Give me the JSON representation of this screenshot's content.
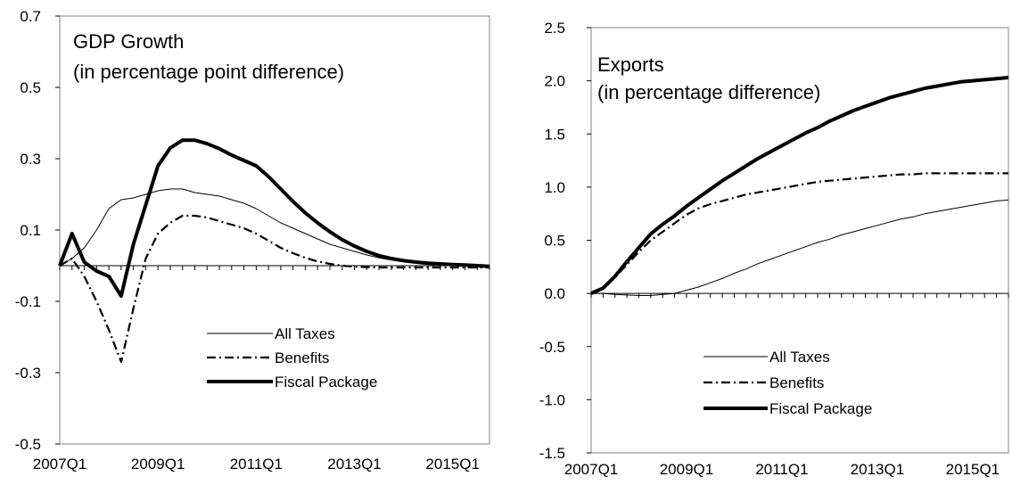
{
  "chart_data": [
    {
      "type": "line",
      "title": "GDP Growth",
      "subtitle": "(in percentage point difference)",
      "ylim": [
        -0.5,
        0.7
      ],
      "yticks": [
        "0.7",
        "0.5",
        "0.3",
        "0.1",
        "-0.1",
        "-0.3",
        "-0.5"
      ],
      "ytick_values": [
        0.7,
        0.5,
        0.3,
        0.1,
        -0.1,
        -0.3,
        -0.5
      ],
      "xtick_labels": [
        "2007Q1",
        "2009Q1",
        "2011Q1",
        "2013Q1",
        "2015Q1"
      ],
      "x": [
        "2007Q1",
        "2007Q2",
        "2007Q3",
        "2007Q4",
        "2008Q1",
        "2008Q2",
        "2008Q3",
        "2008Q4",
        "2009Q1",
        "2009Q2",
        "2009Q3",
        "2009Q4",
        "2010Q1",
        "2010Q2",
        "2010Q3",
        "2010Q4",
        "2011Q1",
        "2011Q2",
        "2011Q3",
        "2011Q4",
        "2012Q1",
        "2012Q2",
        "2012Q3",
        "2012Q4",
        "2013Q1",
        "2013Q2",
        "2013Q3",
        "2013Q4",
        "2014Q1",
        "2014Q2",
        "2014Q3",
        "2014Q4",
        "2015Q1",
        "2015Q2",
        "2015Q3",
        "2015Q4"
      ],
      "series": [
        {
          "name": "All Taxes",
          "style": "thin",
          "values": [
            0.0,
            0.02,
            0.05,
            0.1,
            0.16,
            0.185,
            0.19,
            0.2,
            0.21,
            0.215,
            0.215,
            0.205,
            0.2,
            0.195,
            0.185,
            0.175,
            0.16,
            0.14,
            0.12,
            0.105,
            0.09,
            0.075,
            0.06,
            0.05,
            0.04,
            0.03,
            0.022,
            0.016,
            0.012,
            0.008,
            0.005,
            0.003,
            0.002,
            0.0,
            -0.002,
            -0.003
          ]
        },
        {
          "name": "Benefits",
          "style": "dashdot",
          "values": [
            0.0,
            0.02,
            -0.03,
            -0.1,
            -0.18,
            -0.27,
            -0.12,
            0.02,
            0.09,
            0.12,
            0.14,
            0.14,
            0.135,
            0.125,
            0.115,
            0.105,
            0.09,
            0.07,
            0.05,
            0.035,
            0.022,
            0.012,
            0.005,
            0.0,
            -0.003,
            -0.004,
            -0.005,
            -0.005,
            -0.005,
            -0.005,
            -0.005,
            -0.005,
            -0.005,
            -0.005,
            -0.005,
            -0.005
          ]
        },
        {
          "name": "Fiscal Package",
          "style": "thick",
          "values": [
            0.0,
            0.09,
            0.01,
            -0.015,
            -0.03,
            -0.085,
            0.06,
            0.17,
            0.28,
            0.33,
            0.352,
            0.352,
            0.342,
            0.328,
            0.31,
            0.295,
            0.28,
            0.25,
            0.215,
            0.18,
            0.148,
            0.12,
            0.095,
            0.073,
            0.055,
            0.04,
            0.028,
            0.02,
            0.014,
            0.01,
            0.007,
            0.005,
            0.003,
            0.002,
            0.0,
            -0.002
          ]
        }
      ],
      "legend": "bottom-right",
      "grid": false
    },
    {
      "type": "line",
      "title": "Exports",
      "subtitle": "(in percentage difference)",
      "ylim": [
        -1.5,
        2.5
      ],
      "yticks": [
        "2.5",
        "2.0",
        "1.5",
        "1.0",
        "0.5",
        "0.0",
        "-0.5",
        "-1.0",
        "-1.5"
      ],
      "ytick_values": [
        2.5,
        2.0,
        1.5,
        1.0,
        0.5,
        0.0,
        -0.5,
        -1.0,
        -1.5
      ],
      "xtick_labels": [
        "2007Q1",
        "2009Q1",
        "2011Q1",
        "2013Q1",
        "2015Q1"
      ],
      "x": [
        "2007Q1",
        "2007Q2",
        "2007Q3",
        "2007Q4",
        "2008Q1",
        "2008Q2",
        "2008Q3",
        "2008Q4",
        "2009Q1",
        "2009Q2",
        "2009Q3",
        "2009Q4",
        "2010Q1",
        "2010Q2",
        "2010Q3",
        "2010Q4",
        "2011Q1",
        "2011Q2",
        "2011Q3",
        "2011Q4",
        "2012Q1",
        "2012Q2",
        "2012Q3",
        "2012Q4",
        "2013Q1",
        "2013Q2",
        "2013Q3",
        "2013Q4",
        "2014Q1",
        "2014Q2",
        "2014Q3",
        "2014Q4",
        "2015Q1",
        "2015Q2",
        "2015Q3",
        "2015Q4"
      ],
      "series": [
        {
          "name": "All Taxes",
          "style": "thin",
          "values": [
            0.0,
            0.0,
            -0.01,
            -0.015,
            -0.02,
            -0.02,
            -0.01,
            0.0,
            0.03,
            0.06,
            0.1,
            0.14,
            0.19,
            0.23,
            0.28,
            0.32,
            0.36,
            0.4,
            0.44,
            0.48,
            0.51,
            0.55,
            0.58,
            0.61,
            0.64,
            0.67,
            0.7,
            0.72,
            0.75,
            0.77,
            0.79,
            0.81,
            0.83,
            0.85,
            0.87,
            0.88
          ]
        },
        {
          "name": "Benefits",
          "style": "dashdot",
          "values": [
            0.0,
            0.05,
            0.15,
            0.27,
            0.39,
            0.5,
            0.58,
            0.66,
            0.74,
            0.8,
            0.84,
            0.87,
            0.9,
            0.93,
            0.95,
            0.97,
            0.99,
            1.01,
            1.03,
            1.05,
            1.06,
            1.07,
            1.08,
            1.09,
            1.1,
            1.11,
            1.12,
            1.12,
            1.13,
            1.13,
            1.13,
            1.13,
            1.13,
            1.13,
            1.13,
            1.13
          ]
        },
        {
          "name": "Fiscal Package",
          "style": "thick",
          "values": [
            0.0,
            0.05,
            0.16,
            0.3,
            0.43,
            0.56,
            0.65,
            0.73,
            0.82,
            0.9,
            0.98,
            1.06,
            1.13,
            1.2,
            1.27,
            1.33,
            1.39,
            1.45,
            1.51,
            1.56,
            1.62,
            1.67,
            1.72,
            1.76,
            1.8,
            1.84,
            1.87,
            1.9,
            1.93,
            1.95,
            1.97,
            1.99,
            2.0,
            2.01,
            2.02,
            2.03
          ]
        }
      ],
      "legend": "bottom-right",
      "grid": false
    }
  ]
}
